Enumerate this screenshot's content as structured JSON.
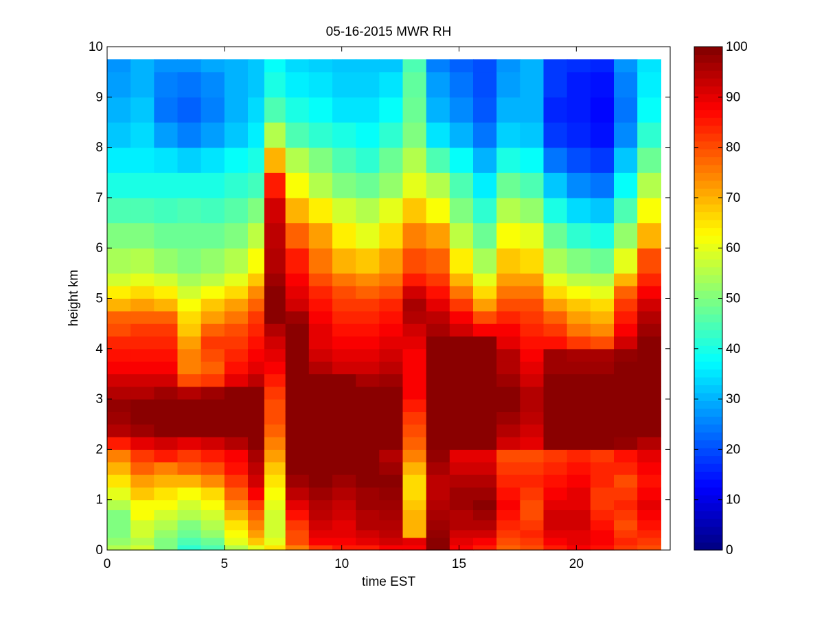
{
  "chart_data": {
    "type": "heatmap",
    "title": "05-16-2015 MWR RH",
    "xlabel": "time EST",
    "ylabel": "height km",
    "xlim": [
      0,
      24
    ],
    "ylim": [
      0,
      10
    ],
    "x_ticks": [
      0,
      5,
      10,
      15,
      20
    ],
    "y_ticks": [
      0,
      1,
      2,
      3,
      4,
      5,
      6,
      7,
      8,
      9,
      10
    ],
    "colorbar": {
      "colormap": "jet",
      "range": [
        0,
        100
      ],
      "ticks": [
        0,
        10,
        20,
        30,
        40,
        50,
        60,
        70,
        80,
        90,
        100
      ]
    },
    "x_edges": [
      0,
      1,
      2,
      3,
      4,
      5,
      6,
      6.7,
      7.6,
      8.6,
      9.6,
      10.6,
      11.6,
      12.6,
      13.6,
      14.6,
      15.6,
      16.6,
      17.6,
      18.6,
      19.6,
      20.6,
      21.6,
      22.6,
      23.6
    ],
    "y_edges": [
      0,
      0.1,
      0.25,
      0.4,
      0.6,
      0.8,
      1.0,
      1.25,
      1.5,
      1.75,
      2.0,
      2.25,
      2.5,
      2.75,
      3.0,
      3.25,
      3.5,
      3.75,
      4.0,
      4.25,
      4.5,
      4.75,
      5.0,
      5.25,
      5.5,
      6.0,
      6.5,
      7.0,
      7.5,
      8.0,
      8.5,
      9.0,
      9.5,
      9.75
    ],
    "columns": [
      [
        55,
        52,
        50,
        50,
        50,
        55,
        60,
        65,
        70,
        75,
        85,
        95,
        97,
        98,
        95,
        92,
        88,
        86,
        84,
        80,
        78,
        70,
        64,
        58,
        54,
        50,
        45,
        40,
        36,
        32,
        30,
        28,
        27
      ],
      [
        58,
        55,
        58,
        58,
        62,
        62,
        68,
        72,
        78,
        82,
        90,
        97,
        99,
        99,
        95,
        92,
        88,
        86,
        84,
        82,
        78,
        72,
        66,
        60,
        55,
        50,
        45,
        40,
        36,
        34,
        32,
        30,
        30
      ],
      [
        50,
        50,
        52,
        55,
        58,
        62,
        65,
        70,
        75,
        85,
        92,
        99,
        99,
        99,
        97,
        92,
        88,
        86,
        84,
        82,
        78,
        70,
        64,
        58,
        52,
        48,
        44,
        40,
        35,
        28,
        24,
        25,
        27
      ],
      [
        42,
        45,
        48,
        50,
        55,
        58,
        62,
        70,
        78,
        82,
        90,
        99,
        99,
        99,
        95,
        80,
        75,
        75,
        72,
        68,
        66,
        62,
        58,
        54,
        50,
        48,
        45,
        40,
        33,
        25,
        22,
        24,
        27
      ],
      [
        45,
        48,
        52,
        55,
        58,
        62,
        66,
        74,
        80,
        85,
        92,
        99,
        99,
        99,
        97,
        82,
        78,
        80,
        82,
        78,
        72,
        68,
        62,
        56,
        52,
        48,
        44,
        40,
        35,
        28,
        25,
        26,
        29
      ],
      [
        55,
        60,
        62,
        65,
        70,
        74,
        78,
        82,
        86,
        88,
        95,
        99,
        99,
        99,
        99,
        90,
        86,
        84,
        82,
        80,
        76,
        72,
        66,
        60,
        55,
        50,
        46,
        42,
        38,
        32,
        30,
        30,
        30
      ],
      [
        60,
        68,
        72,
        75,
        78,
        82,
        88,
        92,
        94,
        96,
        99,
        99,
        99,
        99,
        99,
        94,
        90,
        88,
        86,
        84,
        82,
        78,
        74,
        68,
        62,
        56,
        50,
        44,
        40,
        36,
        34,
        32,
        32
      ],
      [
        65,
        60,
        58,
        58,
        58,
        60,
        62,
        65,
        68,
        72,
        75,
        78,
        80,
        80,
        82,
        85,
        88,
        90,
        92,
        95,
        99,
        99,
        99,
        97,
        95,
        94,
        92,
        85,
        70,
        55,
        45,
        40,
        38
      ],
      [
        75,
        80,
        80,
        82,
        86,
        90,
        94,
        97,
        99,
        99,
        99,
        99,
        99,
        99,
        99,
        99,
        99,
        99,
        99,
        99,
        97,
        92,
        90,
        88,
        85,
        78,
        70,
        62,
        55,
        45,
        40,
        36,
        34
      ],
      [
        82,
        88,
        90,
        92,
        94,
        95,
        97,
        99,
        99,
        99,
        99,
        99,
        99,
        99,
        99,
        99,
        95,
        92,
        90,
        90,
        88,
        86,
        84,
        80,
        76,
        72,
        64,
        55,
        50,
        42,
        38,
        35,
        33
      ],
      [
        85,
        88,
        90,
        90,
        92,
        93,
        95,
        97,
        99,
        99,
        99,
        99,
        99,
        99,
        99,
        99,
        92,
        90,
        88,
        86,
        84,
        82,
        80,
        76,
        70,
        64,
        58,
        50,
        45,
        40,
        35,
        33,
        32
      ],
      [
        85,
        90,
        92,
        95,
        95,
        97,
        97,
        99,
        99,
        99,
        99,
        99,
        99,
        99,
        99,
        96,
        92,
        90,
        88,
        86,
        84,
        82,
        78,
        74,
        68,
        60,
        55,
        48,
        42,
        38,
        35,
        33,
        32
      ],
      [
        88,
        92,
        94,
        95,
        96,
        97,
        98,
        99,
        97,
        95,
        99,
        99,
        99,
        99,
        99,
        97,
        94,
        92,
        90,
        88,
        86,
        84,
        80,
        76,
        72,
        66,
        60,
        52,
        48,
        42,
        38,
        35,
        32
      ],
      [
        88,
        90,
        70,
        70,
        70,
        68,
        66,
        66,
        70,
        75,
        78,
        80,
        82,
        85,
        88,
        88,
        88,
        88,
        90,
        92,
        95,
        96,
        92,
        85,
        80,
        75,
        68,
        60,
        55,
        50,
        48,
        47,
        45
      ],
      [
        99,
        99,
        98,
        97,
        96,
        95,
        94,
        94,
        96,
        98,
        99,
        99,
        99,
        99,
        99,
        99,
        99,
        99,
        99,
        96,
        94,
        90,
        86,
        82,
        78,
        72,
        62,
        55,
        45,
        35,
        30,
        28,
        25
      ],
      [
        88,
        90,
        92,
        95,
        95,
        97,
        97,
        95,
        92,
        90,
        99,
        99,
        99,
        99,
        99,
        99,
        99,
        99,
        99,
        92,
        88,
        82,
        76,
        70,
        64,
        56,
        50,
        45,
        38,
        30,
        26,
        24,
        22
      ],
      [
        85,
        88,
        92,
        95,
        97,
        99,
        97,
        95,
        92,
        90,
        99,
        99,
        99,
        99,
        99,
        99,
        99,
        99,
        99,
        88,
        80,
        72,
        66,
        60,
        54,
        48,
        42,
        36,
        30,
        24,
        21,
        20,
        20
      ],
      [
        78,
        80,
        82,
        84,
        86,
        88,
        86,
        84,
        82,
        80,
        92,
        95,
        97,
        99,
        99,
        97,
        95,
        95,
        90,
        88,
        84,
        80,
        76,
        72,
        68,
        62,
        55,
        48,
        40,
        33,
        30,
        28,
        27
      ],
      [
        80,
        82,
        84,
        82,
        80,
        80,
        82,
        84,
        82,
        80,
        90,
        92,
        94,
        95,
        95,
        92,
        90,
        88,
        86,
        84,
        82,
        80,
        76,
        72,
        66,
        60,
        52,
        45,
        38,
        32,
        30,
        30,
        30
      ],
      [
        85,
        88,
        90,
        92,
        92,
        90,
        88,
        86,
        84,
        82,
        99,
        99,
        99,
        99,
        99,
        99,
        97,
        97,
        86,
        82,
        78,
        72,
        66,
        60,
        54,
        48,
        40,
        32,
        24,
        18,
        16,
        18,
        18
      ],
      [
        88,
        90,
        90,
        92,
        92,
        90,
        90,
        88,
        86,
        84,
        99,
        99,
        99,
        99,
        99,
        99,
        97,
        96,
        82,
        76,
        72,
        68,
        62,
        56,
        50,
        42,
        34,
        26,
        20,
        16,
        15,
        15,
        17
      ],
      [
        86,
        88,
        88,
        86,
        84,
        82,
        82,
        84,
        84,
        82,
        99,
        99,
        99,
        99,
        99,
        99,
        97,
        96,
        80,
        74,
        70,
        66,
        60,
        55,
        48,
        40,
        32,
        24,
        18,
        14,
        13,
        14,
        16
      ],
      [
        82,
        84,
        82,
        80,
        82,
        84,
        82,
        80,
        84,
        86,
        98,
        99,
        99,
        99,
        99,
        99,
        99,
        98,
        92,
        88,
        85,
        82,
        78,
        70,
        60,
        52,
        45,
        38,
        32,
        26,
        24,
        25,
        27
      ],
      [
        80,
        82,
        84,
        86,
        88,
        90,
        88,
        86,
        88,
        90,
        95,
        99,
        99,
        99,
        99,
        99,
        99,
        99,
        99,
        97,
        95,
        92,
        88,
        84,
        80,
        70,
        62,
        55,
        48,
        42,
        38,
        36,
        35
      ]
    ]
  }
}
